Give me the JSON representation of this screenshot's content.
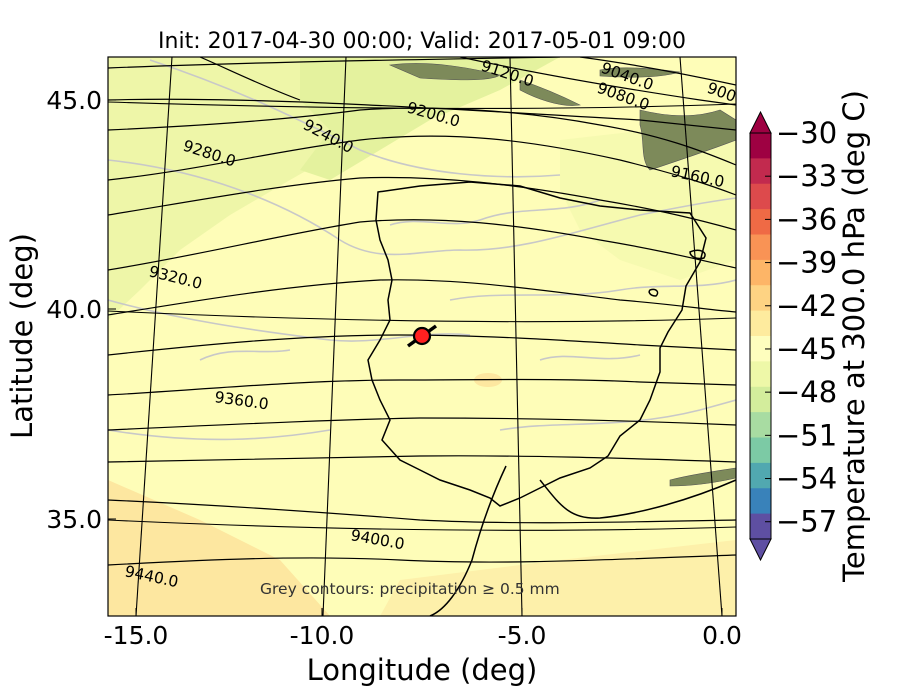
{
  "title": "Init: 2017-04-30 00:00; Valid: 2017-05-01 09:00",
  "x_axis": {
    "label": "Longitude (deg)",
    "ticks": [
      "-15.0",
      "-10.0",
      "-5.0",
      "0.0"
    ]
  },
  "y_axis": {
    "label": "Latitude (deg)",
    "ticks": [
      "45.0",
      "40.0",
      "35.0"
    ]
  },
  "colorbar": {
    "label": "Temperature at 300.0 hPa (deg C)",
    "ticks": [
      "−30",
      "−33",
      "−36",
      "−39",
      "−42",
      "−45",
      "−48",
      "−51",
      "−54",
      "−57"
    ],
    "colors": [
      "#9e0142",
      "#c22a4e",
      "#dd4a4c",
      "#ef6a45",
      "#f99355",
      "#fdb567",
      "#fed383",
      "#feeb9e",
      "#fefebe",
      "#eef8a8",
      "#d3ed9c",
      "#a8dca2",
      "#7ccaa5",
      "#51a8b0",
      "#3982ba",
      "#5e4fa2"
    ]
  },
  "contour_labels": [
    "9040.0",
    "9080.0",
    "9120.0",
    "9160.0",
    "9200.0",
    "9240.0",
    "9280.0",
    "9320.0",
    "9360.0",
    "9400.0",
    "9440.0",
    "900"
  ],
  "note": "Grey contours: precipitation ≥ 0.5 mm",
  "marker": {
    "longitude": -7.6,
    "latitude": 39.3,
    "color": "#ff2020"
  }
}
